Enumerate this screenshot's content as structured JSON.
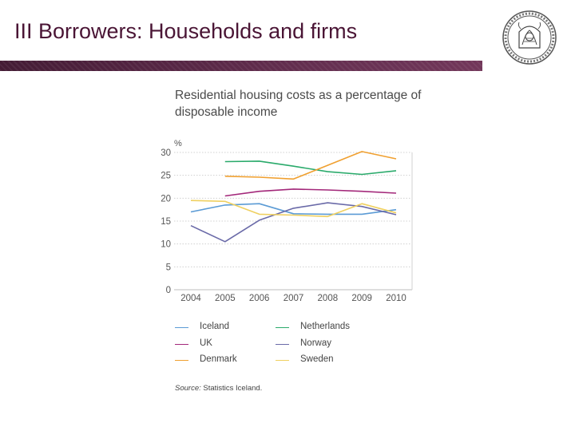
{
  "slide": {
    "title": "III Borrowers: Households and firms"
  },
  "colors": {
    "title_text": "#4a1535",
    "title_bar": "#4a1a3a"
  },
  "logo": {
    "icon": "university-seal-icon"
  },
  "chart_data": {
    "type": "line",
    "title": "Residential housing costs as a percentage of disposable income",
    "ylabel": "%",
    "xlabel": "",
    "x": [
      "2004",
      "2005",
      "2006",
      "2007",
      "2008",
      "2009",
      "2010"
    ],
    "ylim": [
      0,
      30
    ],
    "yticks": [
      0,
      5,
      10,
      15,
      20,
      25,
      30
    ],
    "grid": "horizontal-dotted",
    "legend_placement": "bottom",
    "series": [
      {
        "name": "Iceland",
        "color": "#5b9bd5",
        "values": [
          17.0,
          18.5,
          18.8,
          16.6,
          16.5,
          16.5,
          17.5
        ]
      },
      {
        "name": "Netherlands",
        "color": "#2aaa6b",
        "values": [
          null,
          28.0,
          28.1,
          27.0,
          25.8,
          25.2,
          26.0
        ]
      },
      {
        "name": "UK",
        "color": "#a3287a",
        "values": [
          null,
          20.5,
          21.5,
          22.0,
          21.8,
          21.5,
          21.1
        ]
      },
      {
        "name": "Norway",
        "color": "#6a6aa8",
        "values": [
          14.0,
          10.5,
          15.2,
          17.8,
          19.0,
          18.2,
          16.4
        ]
      },
      {
        "name": "Denmark",
        "color": "#f0a030",
        "values": [
          null,
          24.8,
          24.6,
          24.2,
          27.2,
          30.2,
          28.6
        ]
      },
      {
        "name": "Sweden",
        "color": "#efd060",
        "values": [
          19.5,
          19.3,
          16.5,
          16.3,
          16.0,
          18.8,
          16.8
        ]
      }
    ],
    "source_label": "Source:",
    "source_text": "Statistics Iceland."
  }
}
